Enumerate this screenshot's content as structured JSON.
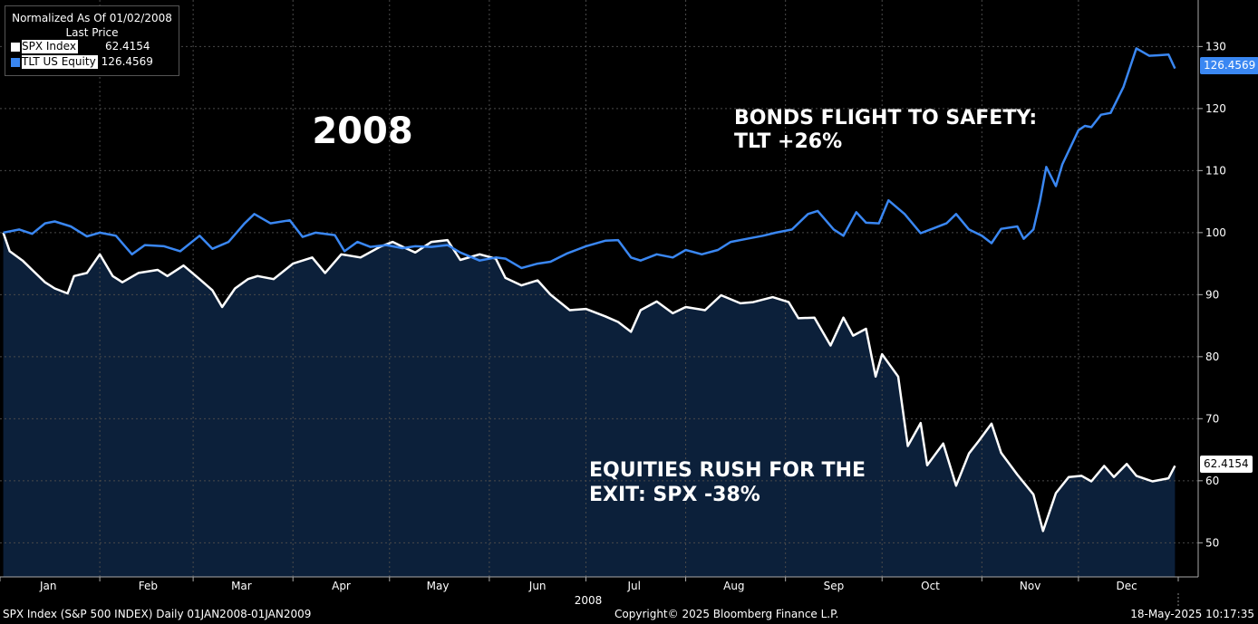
{
  "legend": {
    "title1": "Normalized As Of 01/02/2008",
    "title2": "Last Price",
    "items": [
      {
        "name": "SPX Index",
        "value": "62.4154",
        "color": "#ffffff"
      },
      {
        "name": "TLT US Equity",
        "value": "126.4569",
        "color": "#3a87f2"
      }
    ]
  },
  "annotations": {
    "year": "2008",
    "bonds_line1": "BONDS FLIGHT TO SAFETY:",
    "bonds_line2": "TLT +26%",
    "equities_line1": "EQUITIES RUSH FOR THE",
    "equities_line2": "EXIT: SPX -38%"
  },
  "footer": {
    "left": "SPX Index (S&P 500 INDEX)  Daily 01JAN2008-01JAN2009",
    "center": "Copyright© 2025 Bloomberg Finance L.P.",
    "right": "18-May-2025 10:17:35"
  },
  "chart_data": {
    "type": "line",
    "x_axis_label": "2008",
    "x_ticks": [
      "Jan",
      "Feb",
      "Mar",
      "Apr",
      "May",
      "Jun",
      "Jul",
      "Aug",
      "Sep",
      "Oct",
      "Nov",
      "Dec"
    ],
    "y_ticks": [
      50,
      60,
      70,
      80,
      90,
      100,
      110,
      120,
      130
    ],
    "ylim": [
      44.5,
      137.5
    ],
    "grid": true,
    "legend_position": "top-left",
    "last_values": {
      "SPX Index": "62.4154",
      "TLT US Equity": "126.4569"
    },
    "series": [
      {
        "name": "SPX Index",
        "color": "#ffffff",
        "fill": "#0c203a",
        "points": [
          [
            "2008-01-02",
            100
          ],
          [
            "2008-01-04",
            97
          ],
          [
            "2008-01-08",
            95.5
          ],
          [
            "2008-01-11",
            94
          ],
          [
            "2008-01-15",
            92
          ],
          [
            "2008-01-18",
            91
          ],
          [
            "2008-01-22",
            90.2
          ],
          [
            "2008-01-24",
            93
          ],
          [
            "2008-01-28",
            93.5
          ],
          [
            "2008-02-01",
            96.5
          ],
          [
            "2008-02-05",
            93
          ],
          [
            "2008-02-08",
            92
          ],
          [
            "2008-02-13",
            93.5
          ],
          [
            "2008-02-19",
            94
          ],
          [
            "2008-02-22",
            93
          ],
          [
            "2008-02-27",
            94.7
          ],
          [
            "2008-03-03",
            92.5
          ],
          [
            "2008-03-07",
            90.7
          ],
          [
            "2008-03-10",
            88
          ],
          [
            "2008-03-14",
            91
          ],
          [
            "2008-03-18",
            92.5
          ],
          [
            "2008-03-21",
            93
          ],
          [
            "2008-03-26",
            92.5
          ],
          [
            "2008-04-01",
            95
          ],
          [
            "2008-04-07",
            96
          ],
          [
            "2008-04-11",
            93.5
          ],
          [
            "2008-04-16",
            96.5
          ],
          [
            "2008-04-22",
            96
          ],
          [
            "2008-04-28",
            97.7
          ],
          [
            "2008-05-02",
            98.5
          ],
          [
            "2008-05-06",
            97.5
          ],
          [
            "2008-05-09",
            96.8
          ],
          [
            "2008-05-14",
            98.5
          ],
          [
            "2008-05-19",
            98.8
          ],
          [
            "2008-05-23",
            95.6
          ],
          [
            "2008-05-29",
            96.5
          ],
          [
            "2008-06-03",
            95.8
          ],
          [
            "2008-06-06",
            92.7
          ],
          [
            "2008-06-11",
            91.5
          ],
          [
            "2008-06-16",
            92.3
          ],
          [
            "2008-06-20",
            90
          ],
          [
            "2008-06-26",
            87.5
          ],
          [
            "2008-07-01",
            87.7
          ],
          [
            "2008-07-07",
            86.5
          ],
          [
            "2008-07-11",
            85.6
          ],
          [
            "2008-07-15",
            84
          ],
          [
            "2008-07-18",
            87.5
          ],
          [
            "2008-07-23",
            88.9
          ],
          [
            "2008-07-28",
            87
          ],
          [
            "2008-08-01",
            88
          ],
          [
            "2008-08-07",
            87.5
          ],
          [
            "2008-08-12",
            89.9
          ],
          [
            "2008-08-18",
            88.6
          ],
          [
            "2008-08-22",
            88.8
          ],
          [
            "2008-08-28",
            89.6
          ],
          [
            "2008-09-02",
            88.8
          ],
          [
            "2008-09-05",
            86.2
          ],
          [
            "2008-09-10",
            86.3
          ],
          [
            "2008-09-15",
            81.8
          ],
          [
            "2008-09-19",
            86.3
          ],
          [
            "2008-09-22",
            83.4
          ],
          [
            "2008-09-26",
            84.5
          ],
          [
            "2008-09-29",
            76.8
          ],
          [
            "2008-10-01",
            80.4
          ],
          [
            "2008-10-06",
            76.8
          ],
          [
            "2008-10-09",
            65.6
          ],
          [
            "2008-10-13",
            69.3
          ],
          [
            "2008-10-15",
            62.5
          ],
          [
            "2008-10-20",
            66
          ],
          [
            "2008-10-24",
            59.2
          ],
          [
            "2008-10-28",
            64.4
          ],
          [
            "2008-10-31",
            66.4
          ],
          [
            "2008-11-04",
            69.2
          ],
          [
            "2008-11-07",
            64.5
          ],
          [
            "2008-11-12",
            61
          ],
          [
            "2008-11-17",
            57.8
          ],
          [
            "2008-11-20",
            51.9
          ],
          [
            "2008-11-24",
            58
          ],
          [
            "2008-11-28",
            60.6
          ],
          [
            "2008-12-02",
            60.8
          ],
          [
            "2008-12-05",
            59.9
          ],
          [
            "2008-12-09",
            62.4
          ],
          [
            "2008-12-12",
            60.6
          ],
          [
            "2008-12-16",
            62.7
          ],
          [
            "2008-12-19",
            60.8
          ],
          [
            "2008-12-24",
            59.9
          ],
          [
            "2008-12-29",
            60.4
          ],
          [
            "2008-12-31",
            62.4154
          ]
        ]
      },
      {
        "name": "TLT US Equity",
        "color": "#3a87f2",
        "points": [
          [
            "2008-01-02",
            100
          ],
          [
            "2008-01-07",
            100.5
          ],
          [
            "2008-01-11",
            99.8
          ],
          [
            "2008-01-15",
            101.5
          ],
          [
            "2008-01-18",
            101.8
          ],
          [
            "2008-01-23",
            101
          ],
          [
            "2008-01-28",
            99.4
          ],
          [
            "2008-02-01",
            100
          ],
          [
            "2008-02-06",
            99.5
          ],
          [
            "2008-02-11",
            96.5
          ],
          [
            "2008-02-15",
            98
          ],
          [
            "2008-02-21",
            97.8
          ],
          [
            "2008-02-26",
            97
          ],
          [
            "2008-03-03",
            99.5
          ],
          [
            "2008-03-07",
            97.4
          ],
          [
            "2008-03-12",
            98.5
          ],
          [
            "2008-03-17",
            101.5
          ],
          [
            "2008-03-20",
            103
          ],
          [
            "2008-03-25",
            101.5
          ],
          [
            "2008-03-31",
            102
          ],
          [
            "2008-04-04",
            99.3
          ],
          [
            "2008-04-08",
            100
          ],
          [
            "2008-04-14",
            99.6
          ],
          [
            "2008-04-17",
            97
          ],
          [
            "2008-04-21",
            98.5
          ],
          [
            "2008-04-25",
            97.7
          ],
          [
            "2008-04-30",
            98
          ],
          [
            "2008-05-05",
            97.5
          ],
          [
            "2008-05-09",
            97.8
          ],
          [
            "2008-05-14",
            97.7
          ],
          [
            "2008-05-19",
            98
          ],
          [
            "2008-05-23",
            96.8
          ],
          [
            "2008-05-29",
            95.5
          ],
          [
            "2008-06-03",
            96
          ],
          [
            "2008-06-06",
            95.8
          ],
          [
            "2008-06-11",
            94.3
          ],
          [
            "2008-06-16",
            95
          ],
          [
            "2008-06-20",
            95.3
          ],
          [
            "2008-06-25",
            96.6
          ],
          [
            "2008-07-01",
            97.8
          ],
          [
            "2008-07-07",
            98.7
          ],
          [
            "2008-07-11",
            98.8
          ],
          [
            "2008-07-15",
            96
          ],
          [
            "2008-07-18",
            95.5
          ],
          [
            "2008-07-23",
            96.5
          ],
          [
            "2008-07-28",
            96
          ],
          [
            "2008-08-01",
            97.2
          ],
          [
            "2008-08-06",
            96.5
          ],
          [
            "2008-08-11",
            97.2
          ],
          [
            "2008-08-15",
            98.5
          ],
          [
            "2008-08-20",
            99
          ],
          [
            "2008-08-25",
            99.5
          ],
          [
            "2008-08-29",
            100
          ],
          [
            "2008-09-03",
            100.5
          ],
          [
            "2008-09-08",
            103
          ],
          [
            "2008-09-11",
            103.5
          ],
          [
            "2008-09-16",
            100.5
          ],
          [
            "2008-09-19",
            99.5
          ],
          [
            "2008-09-23",
            103.3
          ],
          [
            "2008-09-26",
            101.6
          ],
          [
            "2008-09-30",
            101.5
          ],
          [
            "2008-10-03",
            105.2
          ],
          [
            "2008-10-08",
            103
          ],
          [
            "2008-10-13",
            99.9
          ],
          [
            "2008-10-17",
            100.7
          ],
          [
            "2008-10-21",
            101.5
          ],
          [
            "2008-10-24",
            103
          ],
          [
            "2008-10-28",
            100.5
          ],
          [
            "2008-11-01",
            99.5
          ],
          [
            "2008-11-04",
            98.3
          ],
          [
            "2008-11-07",
            100.6
          ],
          [
            "2008-11-12",
            101
          ],
          [
            "2008-11-14",
            99
          ],
          [
            "2008-11-17",
            100.5
          ],
          [
            "2008-11-19",
            105
          ],
          [
            "2008-11-21",
            110.6
          ],
          [
            "2008-11-24",
            107.5
          ],
          [
            "2008-11-26",
            111
          ],
          [
            "2008-12-01",
            116.5
          ],
          [
            "2008-12-03",
            117.2
          ],
          [
            "2008-12-05",
            117
          ],
          [
            "2008-12-08",
            119
          ],
          [
            "2008-12-11",
            119.3
          ],
          [
            "2008-12-15",
            123.5
          ],
          [
            "2008-12-19",
            129.7
          ],
          [
            "2008-12-23",
            128.5
          ],
          [
            "2008-12-26",
            128.6
          ],
          [
            "2008-12-29",
            128.7
          ],
          [
            "2008-12-31",
            126.4569
          ]
        ]
      }
    ]
  }
}
